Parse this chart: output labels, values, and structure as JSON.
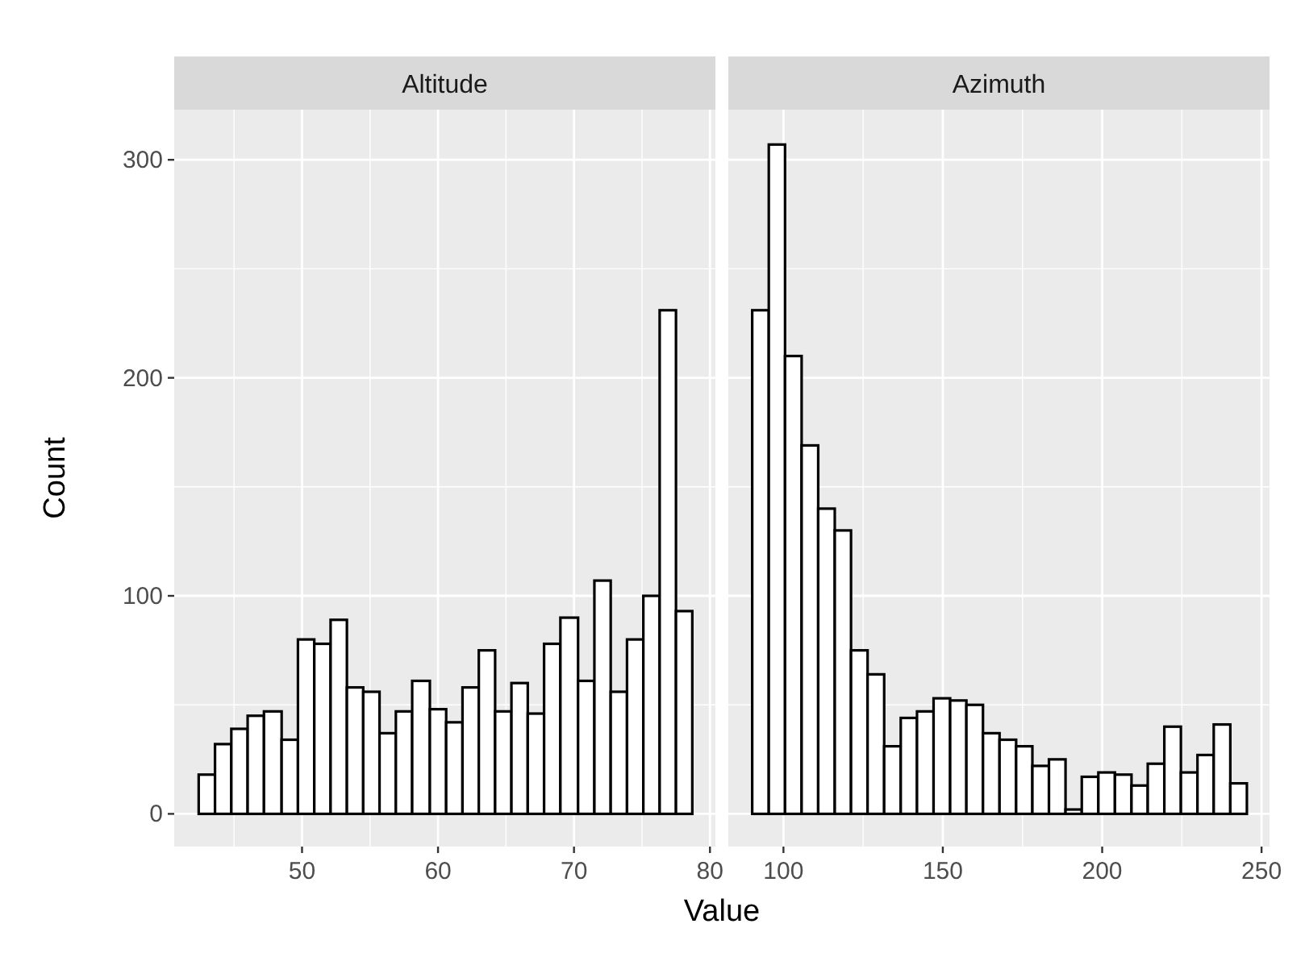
{
  "chart_data": [
    {
      "type": "histogram",
      "title": "Altitude",
      "xlabel": "Value",
      "ylabel": "Count",
      "color": "#ffffff",
      "bins": [
        42.4,
        43.6,
        44.8,
        46.0,
        47.2,
        48.5,
        49.7,
        50.9,
        52.1,
        53.3,
        54.5,
        55.7,
        56.9,
        58.1,
        59.4,
        60.6,
        61.8,
        63.0,
        64.2,
        65.4,
        66.6,
        67.8,
        69.0,
        70.3,
        71.5,
        72.7,
        73.9,
        75.1,
        76.3,
        77.5,
        78.7
      ],
      "values": [
        18,
        32,
        39,
        45,
        47,
        34,
        80,
        78,
        89,
        58,
        56,
        37,
        47,
        61,
        48,
        42,
        58,
        75,
        47,
        60,
        46,
        78,
        90,
        61,
        107,
        56,
        80,
        100,
        231,
        93
      ],
      "xlim": [
        40.6,
        80.4
      ],
      "xticks": [
        50,
        60,
        70,
        80
      ],
      "ylim": [
        -15,
        323
      ],
      "yticks": [
        0,
        100,
        200,
        300
      ],
      "grid": true
    },
    {
      "type": "histogram",
      "title": "Azimuth",
      "color": "#ffffff",
      "bins": [
        90.2,
        95.4,
        100.5,
        105.7,
        110.9,
        116.1,
        121.2,
        126.4,
        131.6,
        136.8,
        141.9,
        147.1,
        152.3,
        157.4,
        162.6,
        167.8,
        173.0,
        178.1,
        183.3,
        188.5,
        193.6,
        198.8,
        204.0,
        209.2,
        214.3,
        219.5,
        224.7,
        229.9,
        235.0,
        240.2,
        245.4
      ],
      "values": [
        231,
        307,
        210,
        169,
        140,
        130,
        75,
        64,
        31,
        44,
        47,
        53,
        52,
        50,
        37,
        34,
        31,
        22,
        25,
        2,
        17,
        19,
        18,
        13,
        23,
        40,
        19,
        27,
        41,
        14
      ],
      "xlim": [
        82.7,
        252.5
      ],
      "xticks": [
        100,
        150,
        200,
        250
      ],
      "ylim": [
        -15,
        323
      ],
      "yticks": [
        0,
        100,
        200,
        300
      ],
      "grid": true,
      "tick_labels": "x"
    }
  ]
}
